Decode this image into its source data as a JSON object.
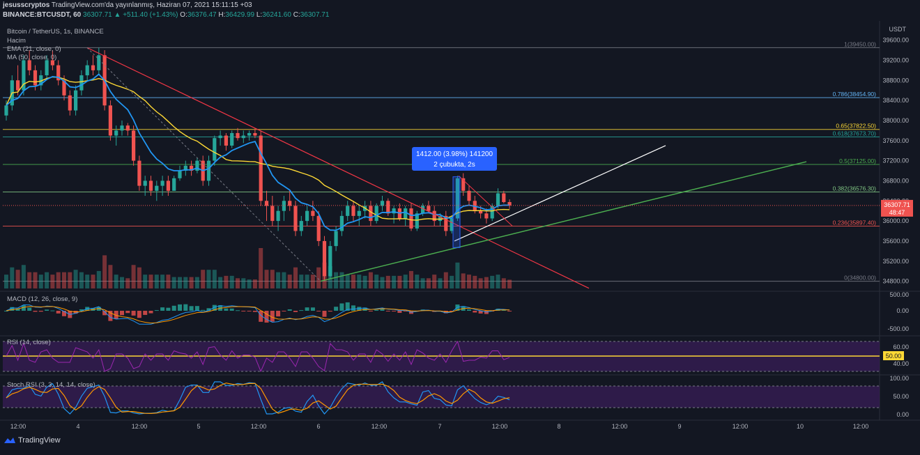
{
  "header": {
    "publisher": "jesusscryptos",
    "published": "TradingView.com'da yayınlanmış, Haziran 07, 2021 15:11:15 +03",
    "symbol": "BINANCE:BTCUSDT, 60",
    "last": "36307.71",
    "change": "▲ +511.40 (+1.43%)",
    "ohlc": {
      "o": "36376.47",
      "h": "36429.99",
      "l": "36241.60",
      "c": "36307.71"
    }
  },
  "legend": {
    "title": "Bitcoin / TetherUS, 1s, BINANCE",
    "volume": "Hacim",
    "ema": "EMA (21, close, 0)",
    "ma": "MA (50, close, 0)",
    "macd": "MACD (12, 26, close, 9)",
    "rsi": "RSI (14, close)",
    "stoch": "Stoch RSI (3, 3, 14, 14, close)"
  },
  "brand": "TradingView",
  "colors": {
    "background": "#131722",
    "up": "#26a69a",
    "down": "#ef5350",
    "ema": "#2196f3",
    "ma": "#fdd835",
    "trend_red": "#f23645",
    "trend_white": "#ffffff",
    "trend_green": "#4caf50",
    "rsi_band": "#3b1e5a",
    "measure": "#2962ff"
  },
  "chart_data": {
    "type": "candlestick",
    "price_axis": {
      "unit": "USDT",
      "ticks": [
        "39600.00",
        "39200.00",
        "38800.00",
        "38400.00",
        "38000.00",
        "37600.00",
        "37200.00",
        "36800.00",
        "36400.00",
        "36000.00",
        "35600.00",
        "35200.00",
        "34800.00"
      ],
      "range": [
        34600,
        39900
      ],
      "last_price_label": "36307.71",
      "countdown": "48:47"
    },
    "time_axis": {
      "ticks": [
        "12:00",
        "4",
        "12:00",
        "5",
        "12:00",
        "6",
        "12:00",
        "7",
        "12:00",
        "8",
        "12:00",
        "9",
        "12:00",
        "10",
        "12:00"
      ]
    },
    "fibonacci": [
      {
        "label": "1(39450.00)",
        "level": 39450,
        "color": "#787b86"
      },
      {
        "label": "0.786(38454.90)",
        "level": 38454.9,
        "color": "#64b5f6"
      },
      {
        "label": "0.65(37822.50)",
        "level": 37822.5,
        "color": "#fdd835"
      },
      {
        "label": "0.618(37673.70)",
        "level": 37673.7,
        "color": "#26a69a"
      },
      {
        "label": "0.5(37125.00)",
        "level": 37125,
        "color": "#4caf50"
      },
      {
        "label": "0.382(36576.30)",
        "level": 36576.3,
        "color": "#81c784"
      },
      {
        "label": "0.236(35897.40)",
        "level": 35897.4,
        "color": "#ef5350"
      },
      {
        "label": "0(34800.00)",
        "level": 34800,
        "color": "#787b86"
      }
    ],
    "measure_tooltip": {
      "line1": "1412.00 (3.98%) 141200",
      "line2": "2 çubukta, 2s"
    },
    "candles": [
      [
        38100,
        38400,
        38000,
        38300
      ],
      [
        38300,
        38900,
        38200,
        38800
      ],
      [
        38800,
        39100,
        38500,
        38600
      ],
      [
        38600,
        39300,
        38500,
        39200
      ],
      [
        39200,
        39400,
        38900,
        39000
      ],
      [
        39000,
        39100,
        38600,
        38700
      ],
      [
        38700,
        39000,
        38600,
        38900
      ],
      [
        38900,
        39300,
        38800,
        39200
      ],
      [
        39200,
        39400,
        39000,
        39100
      ],
      [
        39100,
        39200,
        38700,
        38800
      ],
      [
        38800,
        38900,
        38400,
        38500
      ],
      [
        38500,
        38600,
        38100,
        38200
      ],
      [
        38200,
        38700,
        38100,
        38600
      ],
      [
        38600,
        39000,
        38500,
        38900
      ],
      [
        38900,
        39200,
        38800,
        39100
      ],
      [
        39100,
        39300,
        38900,
        39000
      ],
      [
        39000,
        39450,
        38900,
        39300
      ],
      [
        39300,
        39400,
        38200,
        38300
      ],
      [
        38300,
        38400,
        37600,
        37700
      ],
      [
        37700,
        37900,
        37500,
        37800
      ],
      [
        37800,
        38000,
        37700,
        37900
      ],
      [
        37900,
        37950,
        37700,
        37800
      ],
      [
        37800,
        37900,
        37100,
        37200
      ],
      [
        37200,
        37300,
        36600,
        36700
      ],
      [
        36700,
        36900,
        36500,
        36800
      ],
      [
        36800,
        36900,
        36500,
        36600
      ],
      [
        36600,
        36800,
        36400,
        36700
      ],
      [
        36700,
        36900,
        36500,
        36800
      ],
      [
        36800,
        36900,
        36500,
        36600
      ],
      [
        36600,
        36900,
        36600,
        36850
      ],
      [
        36850,
        37100,
        36800,
        37000
      ],
      [
        37000,
        37200,
        36900,
        37100
      ],
      [
        37100,
        37200,
        36900,
        37000
      ],
      [
        37000,
        37250,
        36950,
        37200
      ],
      [
        37200,
        37300,
        36700,
        36800
      ],
      [
        36800,
        37300,
        36700,
        37200
      ],
      [
        37200,
        37700,
        37100,
        37650
      ],
      [
        37650,
        37800,
        37500,
        37700
      ],
      [
        37700,
        37750,
        37400,
        37500
      ],
      [
        37500,
        37800,
        37450,
        37750
      ],
      [
        37750,
        37850,
        37600,
        37650
      ],
      [
        37650,
        37800,
        37550,
        37700
      ],
      [
        37700,
        37800,
        37600,
        37750
      ],
      [
        37750,
        37850,
        37650,
        37700
      ],
      [
        37700,
        37800,
        36300,
        36400
      ],
      [
        36400,
        36600,
        36000,
        36300
      ],
      [
        36300,
        36500,
        35900,
        36000
      ],
      [
        36000,
        36300,
        35800,
        36200
      ],
      [
        36200,
        36500,
        36000,
        36400
      ],
      [
        36400,
        36600,
        36200,
        36300
      ],
      [
        36300,
        36400,
        35700,
        35800
      ],
      [
        35800,
        36100,
        35700,
        36000
      ],
      [
        36000,
        36300,
        35900,
        36200
      ],
      [
        36200,
        36400,
        36000,
        36100
      ],
      [
        36100,
        36200,
        35500,
        35600
      ],
      [
        35600,
        35700,
        34800,
        34900
      ],
      [
        34900,
        35600,
        34850,
        35500
      ],
      [
        35500,
        35900,
        35400,
        35800
      ],
      [
        35800,
        36200,
        35700,
        36100
      ],
      [
        36100,
        36400,
        36000,
        36300
      ],
      [
        36300,
        36400,
        36000,
        36100
      ],
      [
        36100,
        36300,
        35900,
        36200
      ],
      [
        36200,
        36400,
        36050,
        36300
      ],
      [
        36300,
        36400,
        35900,
        36000
      ],
      [
        36000,
        36350,
        35950,
        36300
      ],
      [
        36300,
        36500,
        36200,
        36400
      ],
      [
        36400,
        36450,
        36100,
        36150
      ],
      [
        36150,
        36300,
        35950,
        36250
      ],
      [
        36250,
        36350,
        36000,
        36050
      ],
      [
        36050,
        36300,
        35900,
        36250
      ],
      [
        36250,
        36350,
        35800,
        35850
      ],
      [
        35850,
        36200,
        35800,
        36150
      ],
      [
        36150,
        36350,
        36100,
        36300
      ],
      [
        36300,
        36400,
        36150,
        36200
      ],
      [
        36200,
        36300,
        35900,
        36000
      ],
      [
        36000,
        36150,
        35900,
        36100
      ],
      [
        36100,
        36200,
        35700,
        35800
      ],
      [
        35800,
        36100,
        35750,
        36050
      ],
      [
        36050,
        36900,
        36000,
        36850
      ],
      [
        36850,
        36950,
        36500,
        36600
      ],
      [
        36600,
        36700,
        36300,
        36400
      ],
      [
        36400,
        36500,
        36150,
        36200
      ],
      [
        36200,
        36300,
        36050,
        36150
      ],
      [
        36150,
        36250,
        35950,
        36050
      ],
      [
        36050,
        36350,
        36000,
        36300
      ],
      [
        36300,
        36650,
        36250,
        36550
      ],
      [
        36550,
        36600,
        36350,
        36376
      ],
      [
        36376,
        36430,
        36241,
        36308
      ]
    ]
  }
}
